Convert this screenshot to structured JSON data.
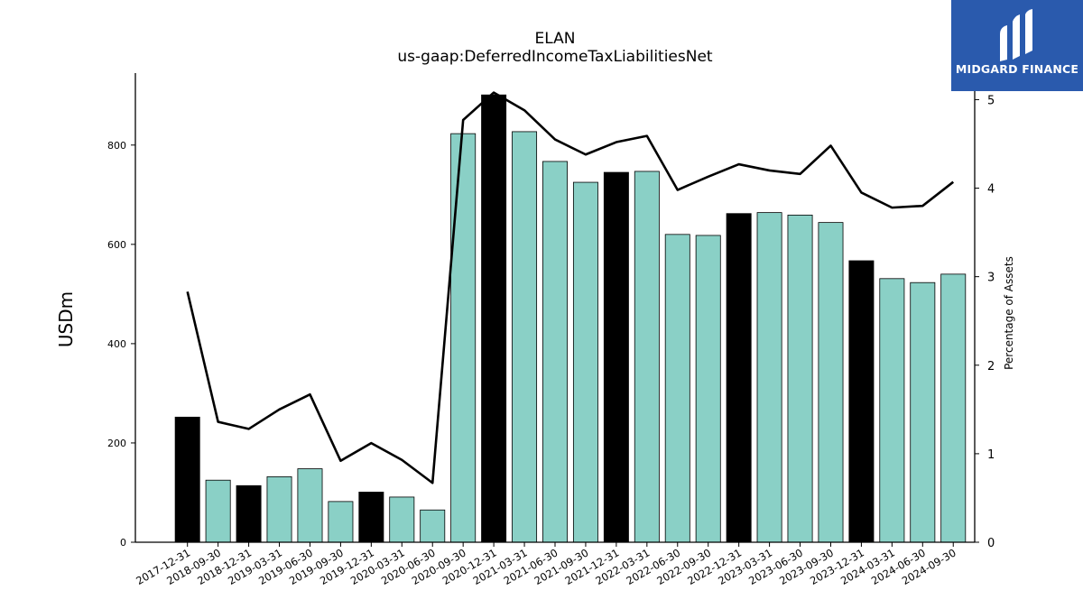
{
  "chart_data": {
    "type": "bar",
    "title": "ELAN",
    "subtitle": "us-gaap:DeferredIncomeTaxLiabilitiesNet",
    "ylabel": "USDm",
    "y2label": "Percentage of Assets",
    "ylim": [
      0,
      945
    ],
    "y2lim": [
      0,
      5.3
    ],
    "yticks": [
      0,
      200,
      400,
      600,
      800
    ],
    "y2ticks": [
      0,
      1,
      2,
      3,
      4,
      5
    ],
    "categories": [
      "2017-12-31",
      "2018-09-30",
      "2018-12-31",
      "2019-03-31",
      "2019-06-30",
      "2019-09-30",
      "2019-12-31",
      "2020-03-31",
      "2020-06-30",
      "2020-09-30",
      "2020-12-31",
      "2021-03-31",
      "2021-06-30",
      "2021-09-30",
      "2021-12-31",
      "2022-03-31",
      "2022-06-30",
      "2022-09-30",
      "2022-12-31",
      "2023-03-31",
      "2023-06-30",
      "2023-09-30",
      "2023-12-31",
      "2024-03-31",
      "2024-06-30",
      "2024-09-30"
    ],
    "series": [
      {
        "type": "bar",
        "values": [
          252,
          125,
          114,
          132,
          148,
          82,
          101,
          91,
          65,
          823,
          901,
          827,
          767,
          725,
          745,
          747,
          620,
          618,
          662,
          664,
          659,
          644,
          567,
          531,
          523,
          540
        ],
        "highlight": [
          true,
          false,
          true,
          false,
          false,
          false,
          true,
          false,
          false,
          false,
          true,
          false,
          false,
          false,
          true,
          false,
          false,
          false,
          true,
          false,
          false,
          false,
          true,
          false,
          false,
          false
        ]
      },
      {
        "type": "line",
        "axis": "right",
        "values": [
          2.83,
          1.36,
          1.28,
          1.5,
          1.67,
          0.92,
          1.12,
          0.93,
          0.67,
          4.77,
          5.08,
          4.88,
          4.55,
          4.38,
          4.52,
          4.59,
          3.98,
          4.13,
          4.27,
          4.2,
          4.16,
          4.48,
          3.95,
          3.78,
          3.8,
          4.07
        ]
      }
    ],
    "colors": {
      "bar": "#8ad0c6",
      "bar_highlight": "#000000",
      "line": "#000000"
    },
    "grid": false
  },
  "logo": {
    "text": "MIDGARD FINANCE"
  }
}
